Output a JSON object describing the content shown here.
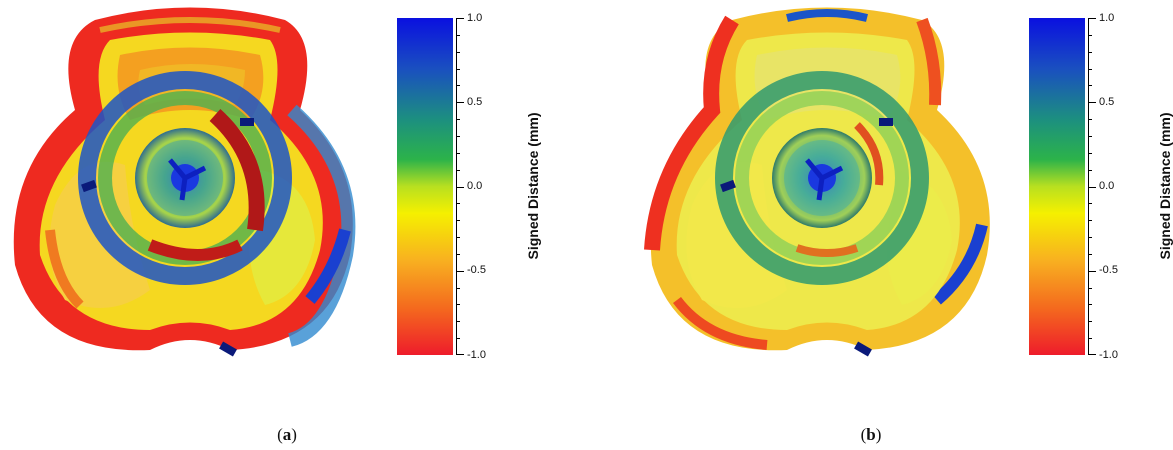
{
  "chart_data": [
    {
      "type": "heatmap",
      "panel_label": "a",
      "colorbar": {
        "title": "Signed Distance (mm)",
        "range": [
          -1.0,
          1.0
        ],
        "ticks": [
          "1.0",
          "0.5",
          "0.0",
          "-0.5",
          "-1.0"
        ],
        "colors": [
          "#0a22d8",
          "#19a255",
          "#f0f000",
          "#f5a31c",
          "#ee1c2b"
        ]
      }
    },
    {
      "type": "heatmap",
      "panel_label": "b",
      "colorbar": {
        "title": "Signed Distance (mm)",
        "range": [
          -1.0,
          1.0
        ],
        "ticks": [
          "1.0",
          "0.5",
          "0.0",
          "-0.5",
          "-1.0"
        ],
        "colors": [
          "#0a22d8",
          "#19a255",
          "#f0f000",
          "#f5a31c",
          "#ee1c2b"
        ]
      }
    }
  ]
}
